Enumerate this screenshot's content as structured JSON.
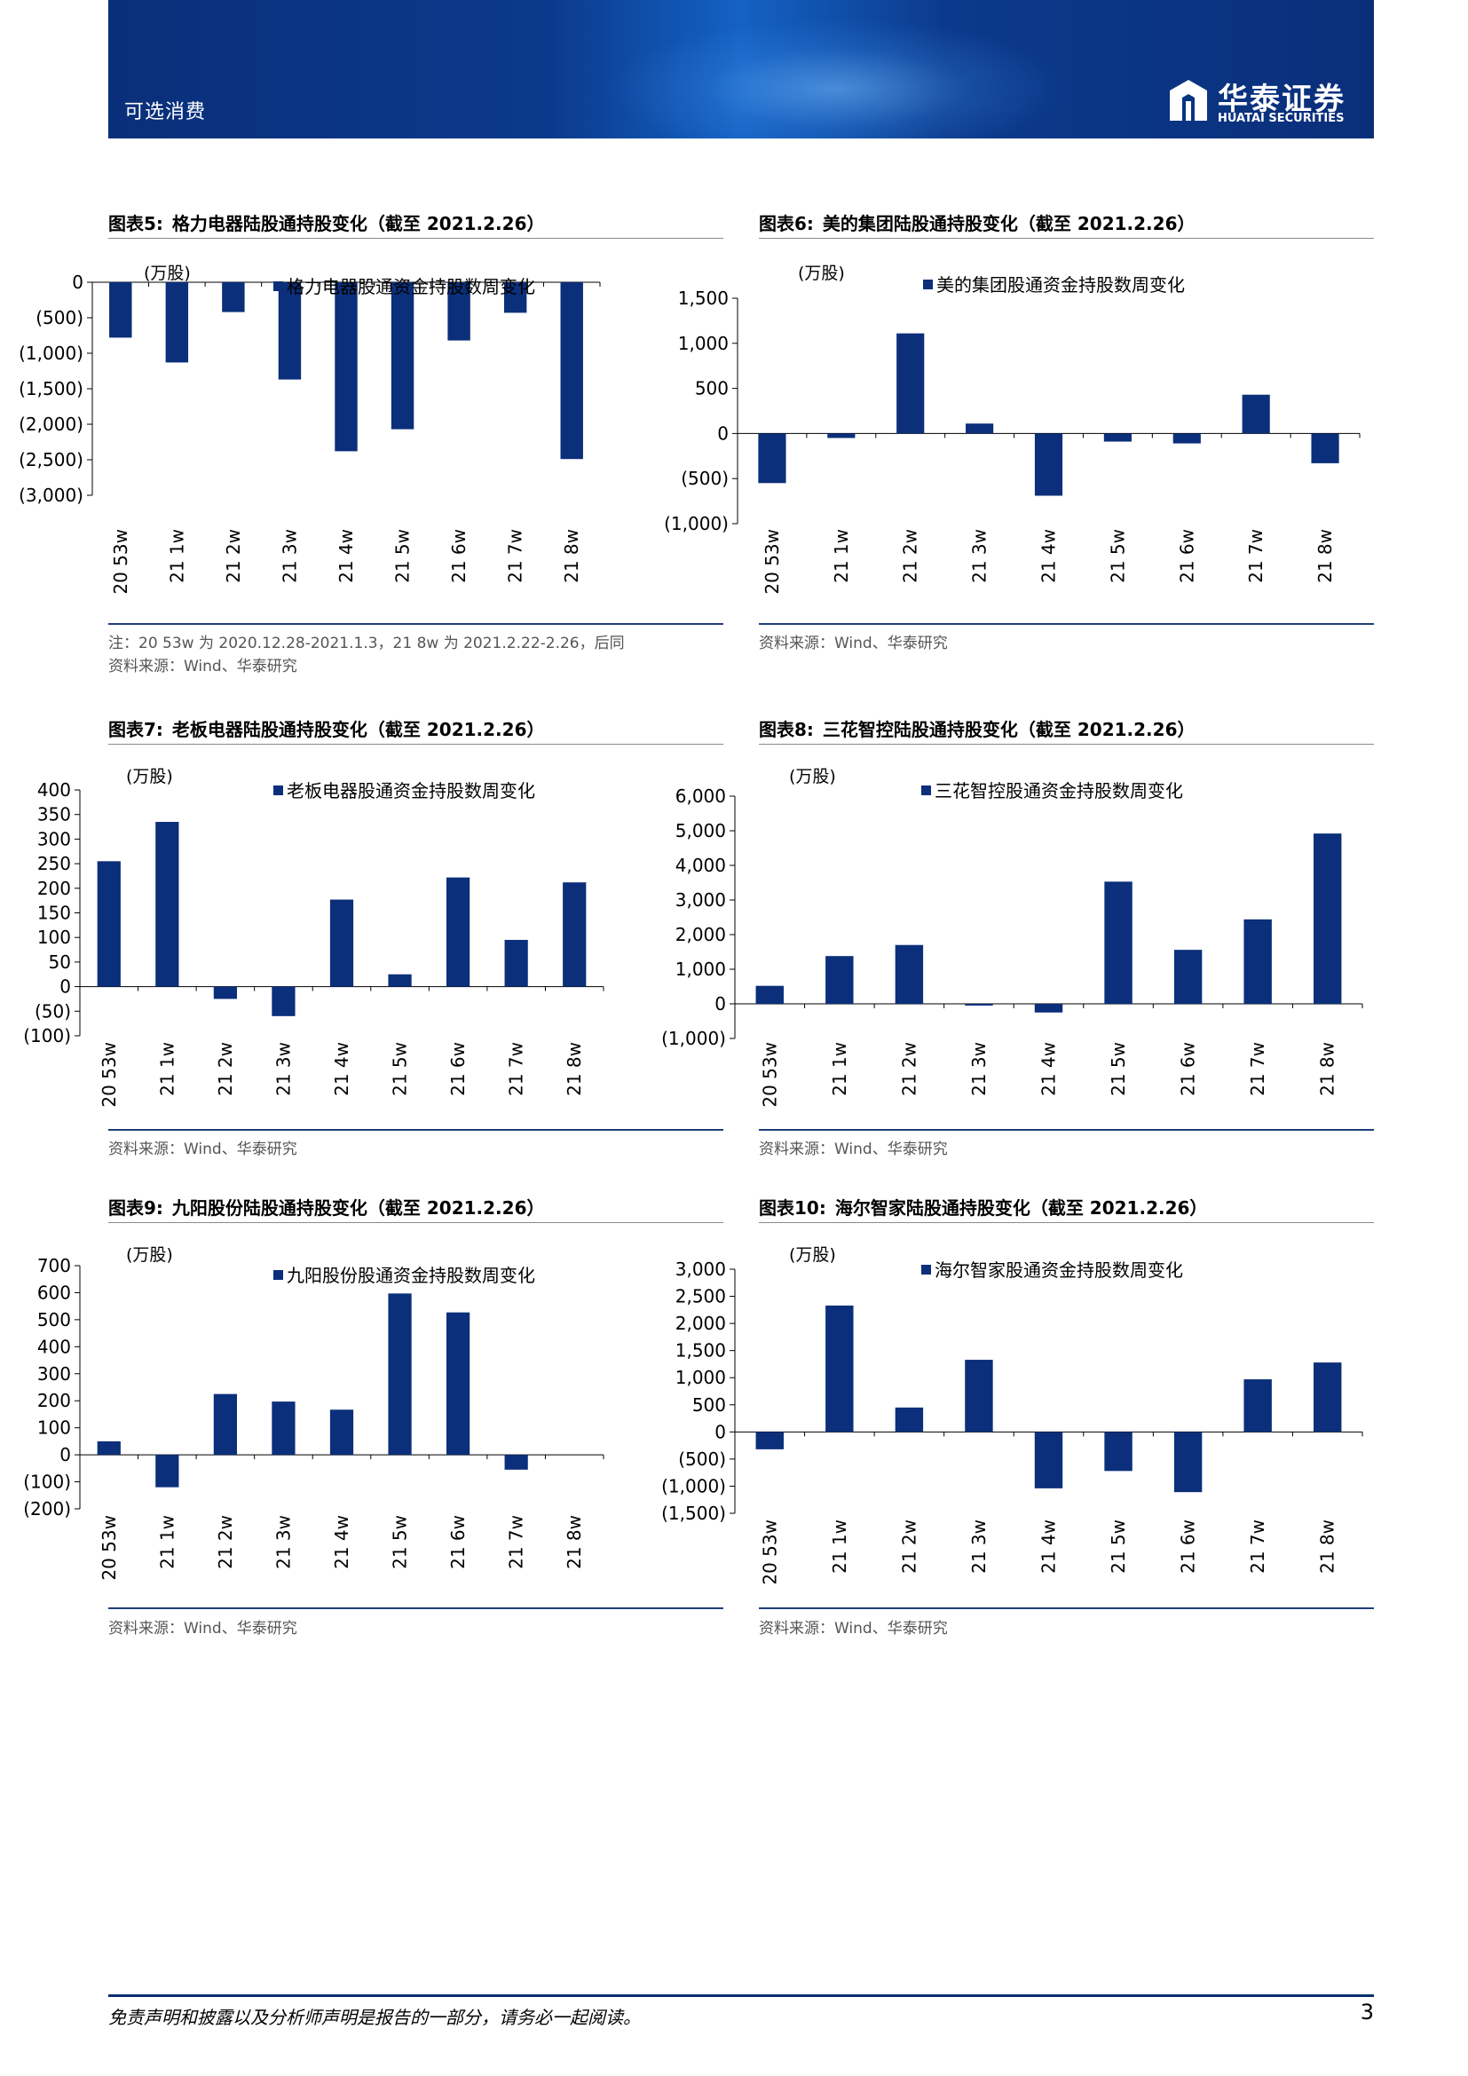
{
  "header": {
    "sector": "可选消费",
    "logo_cn": "华泰证券",
    "logo_en": "HUATAI SECURITIES"
  },
  "colors": {
    "bar": "#0b2f7a",
    "header": "#0b3a8c"
  },
  "charts": [
    {
      "id": "fig5",
      "fig_no": "图表5:",
      "title": "格力电器陆股通持股变化（截至 2021.2.26）",
      "unit": "(万股)",
      "legend": "格力电器股通资金持股数周变化",
      "note": "注：20 53w 为 2020.12.28-2021.1.3，21 8w 为 2021.2.22-2.26，后同",
      "source": "资料来源：Wind、华泰研究"
    },
    {
      "id": "fig6",
      "fig_no": "图表6:",
      "title": "美的集团陆股通持股变化（截至 2021.2.26）",
      "unit": "(万股)",
      "legend": "美的集团股通资金持股数周变化",
      "source": "资料来源：Wind、华泰研究"
    },
    {
      "id": "fig7",
      "fig_no": "图表7:",
      "title": "老板电器陆股通持股变化（截至 2021.2.26）",
      "unit": "(万股)",
      "legend": "老板电器股通资金持股数周变化",
      "source": "资料来源：Wind、华泰研究"
    },
    {
      "id": "fig8",
      "fig_no": "图表8:",
      "title": "三花智控陆股通持股变化（截至 2021.2.26）",
      "unit": "(万股)",
      "legend": "三花智控股通资金持股数周变化",
      "source": "资料来源：Wind、华泰研究"
    },
    {
      "id": "fig9",
      "fig_no": "图表9:",
      "title": "九阳股份陆股通持股变化（截至 2021.2.26）",
      "unit": "(万股)",
      "legend": "九阳股份股通资金持股数周变化",
      "source": "资料来源：Wind、华泰研究"
    },
    {
      "id": "fig10",
      "fig_no": "图表10:",
      "title": "海尔智家陆股通持股变化（截至 2021.2.26）",
      "unit": "(万股)",
      "legend": "海尔智家股通资金持股数周变化",
      "source": "资料来源：Wind、华泰研究"
    }
  ],
  "chart_data": [
    {
      "type": "bar",
      "categories": [
        "20 53w",
        "21 1w",
        "21 2w",
        "21 3w",
        "21 4w",
        "21 5w",
        "21 6w",
        "21 7w",
        "21 8w"
      ],
      "series": [
        {
          "name": "格力电器股通资金持股数周变化",
          "values": [
            -780,
            -1130,
            -420,
            -1370,
            -2380,
            -2070,
            -820,
            -430,
            -2490
          ]
        }
      ],
      "ylim": [
        -3000,
        0
      ],
      "yticks": [
        0,
        -500,
        -1000,
        -1500,
        -2000,
        -2500,
        -3000
      ],
      "ytick_labels": [
        "0",
        "(500)",
        "(1,000)",
        "(1,500)",
        "(2,000)",
        "(2,500)",
        "(3,000)"
      ],
      "ylabel": "(万股)"
    },
    {
      "type": "bar",
      "categories": [
        "20 53w",
        "21 1w",
        "21 2w",
        "21 3w",
        "21 4w",
        "21 5w",
        "21 6w",
        "21 7w",
        "21 8w"
      ],
      "series": [
        {
          "name": "美的集团股通资金持股数周变化",
          "values": [
            -550,
            -50,
            1110,
            110,
            -690,
            -90,
            -110,
            430,
            -330
          ]
        }
      ],
      "ylim": [
        -1000,
        1500
      ],
      "yticks": [
        1500,
        1000,
        500,
        0,
        -500,
        -1000
      ],
      "ytick_labels": [
        "1,500",
        "1,000",
        "500",
        "0",
        "(500)",
        "(1,000)"
      ],
      "ylabel": "(万股)"
    },
    {
      "type": "bar",
      "categories": [
        "20 53w",
        "21 1w",
        "21 2w",
        "21 3w",
        "21 4w",
        "21 5w",
        "21 6w",
        "21 7w",
        "21 8w"
      ],
      "series": [
        {
          "name": "老板电器股通资金持股数周变化",
          "values": [
            255,
            335,
            -25,
            -60,
            177,
            25,
            222,
            95,
            212
          ]
        }
      ],
      "ylim": [
        -100,
        400
      ],
      "yticks": [
        400,
        350,
        300,
        250,
        200,
        150,
        100,
        50,
        0,
        -50,
        -100
      ],
      "ytick_labels": [
        "400",
        "350",
        "300",
        "250",
        "200",
        "150",
        "100",
        "50",
        "0",
        "(50)",
        "(100)"
      ],
      "ylabel": "(万股)"
    },
    {
      "type": "bar",
      "categories": [
        "20 53w",
        "21 1w",
        "21 2w",
        "21 3w",
        "21 4w",
        "21 5w",
        "21 6w",
        "21 7w",
        "21 8w"
      ],
      "series": [
        {
          "name": "三花智控股通资金持股数周变化",
          "values": [
            520,
            1380,
            1700,
            -50,
            -250,
            3530,
            1560,
            2440,
            4920
          ]
        }
      ],
      "ylim": [
        -1000,
        6000
      ],
      "yticks": [
        6000,
        5000,
        4000,
        3000,
        2000,
        1000,
        0,
        -1000
      ],
      "ytick_labels": [
        "6,000",
        "5,000",
        "4,000",
        "3,000",
        "2,000",
        "1,000",
        "0",
        "(1,000)"
      ],
      "ylabel": "(万股)"
    },
    {
      "type": "bar",
      "categories": [
        "20 53w",
        "21 1w",
        "21 2w",
        "21 3w",
        "21 4w",
        "21 5w",
        "21 6w",
        "21 7w",
        "21 8w"
      ],
      "series": [
        {
          "name": "九阳股份股通资金持股数周变化",
          "values": [
            50,
            -120,
            225,
            197,
            167,
            597,
            527,
            -55,
            0
          ]
        }
      ],
      "ylim": [
        -200,
        700
      ],
      "yticks": [
        700,
        600,
        500,
        400,
        300,
        200,
        100,
        0,
        -100,
        -200
      ],
      "ytick_labels": [
        "700",
        "600",
        "500",
        "400",
        "300",
        "200",
        "100",
        "0",
        "(100)",
        "(200)"
      ],
      "ylabel": "(万股)"
    },
    {
      "type": "bar",
      "categories": [
        "20 53w",
        "21 1w",
        "21 2w",
        "21 3w",
        "21 4w",
        "21 5w",
        "21 6w",
        "21 7w",
        "21 8w"
      ],
      "series": [
        {
          "name": "海尔智家股通资金持股数周变化",
          "values": [
            -320,
            2330,
            450,
            1330,
            -1040,
            -720,
            -1110,
            970,
            1280
          ]
        }
      ],
      "ylim": [
        -1500,
        3000
      ],
      "yticks": [
        3000,
        2500,
        2000,
        1500,
        1000,
        500,
        0,
        -500,
        -1000,
        -1500
      ],
      "ytick_labels": [
        "3,000",
        "2,500",
        "2,000",
        "1,500",
        "1,000",
        "500",
        "0",
        "(500)",
        "(1,000)",
        "(1,500)"
      ],
      "ylabel": "(万股)"
    }
  ],
  "footer": {
    "disclaimer": "免责声明和披露以及分析师声明是报告的一部分，请务必一起阅读。",
    "page": "3"
  }
}
